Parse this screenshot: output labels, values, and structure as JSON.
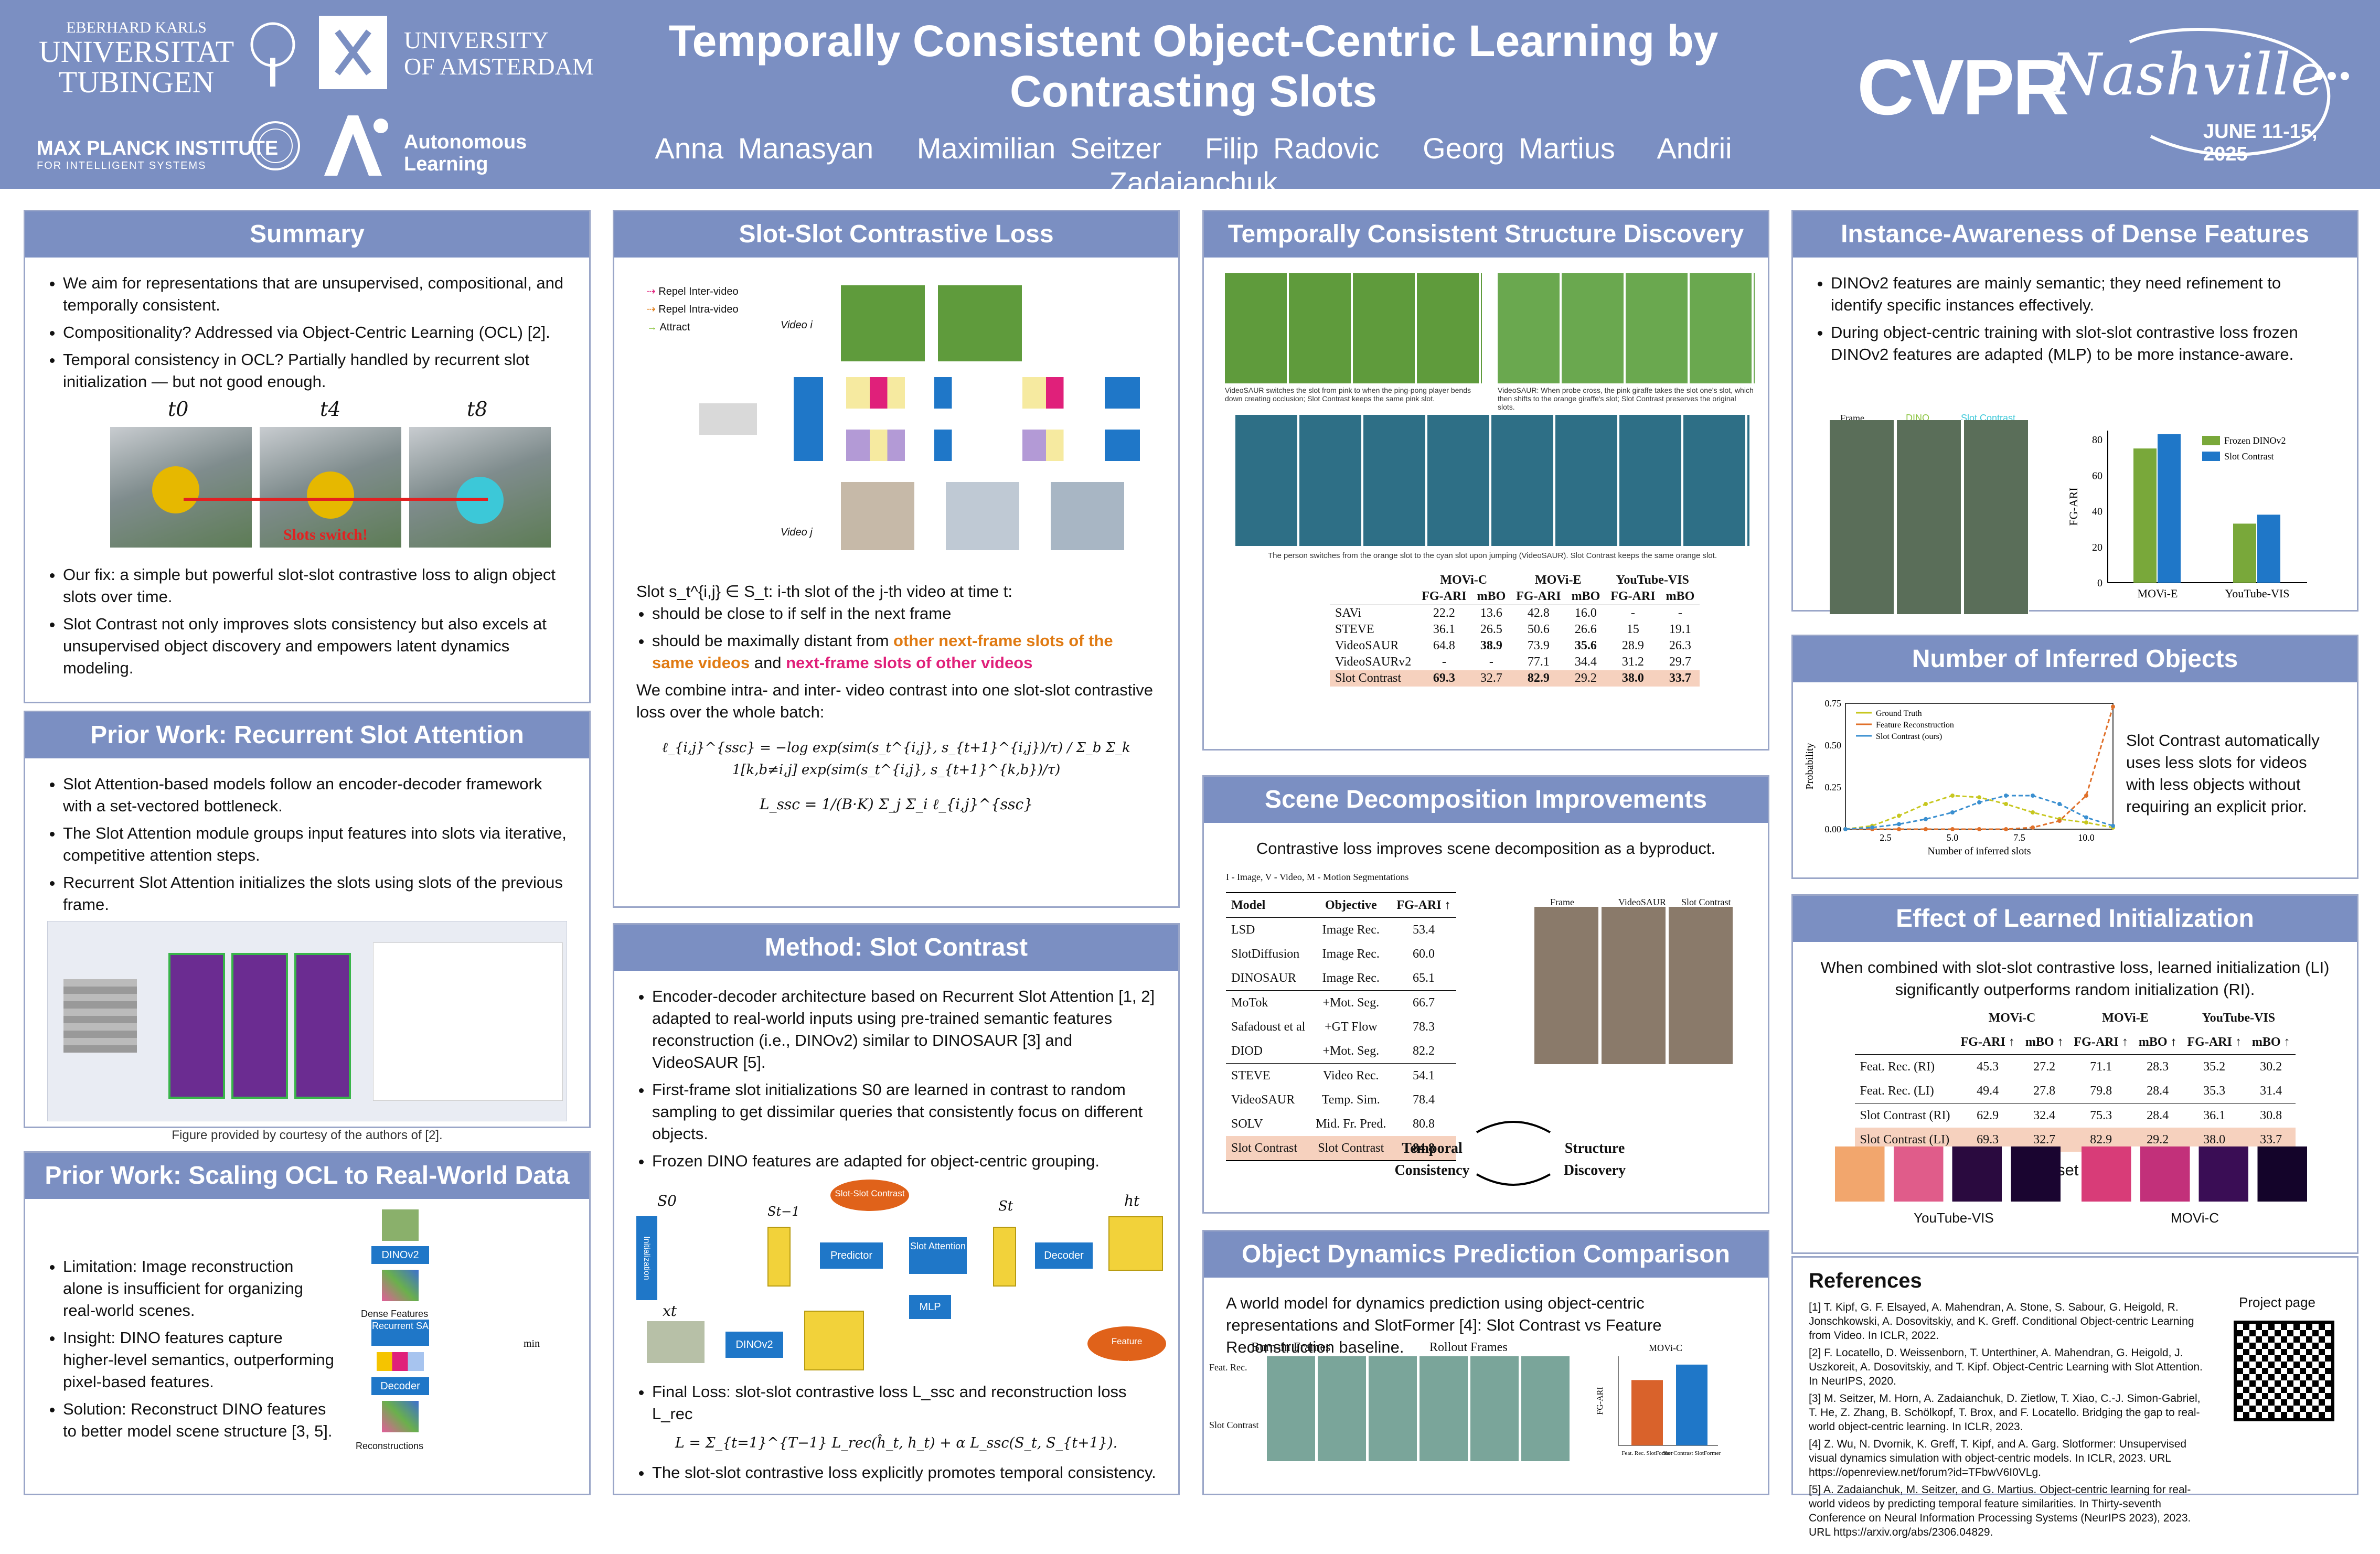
{
  "header": {
    "title": "Temporally Consistent Object-Centric Learning by Contrasting Slots",
    "authors": [
      "Anna Manasyan",
      "Maximilian Seitzer",
      "Filip Radovic",
      "Georg Martius",
      "Andrii Zadaianchuk"
    ],
    "logos": {
      "tuebingen_small": "EBERHARD KARLS",
      "tuebingen_big1": "UNIVERSITAT",
      "tuebingen_big2": "TUBINGEN",
      "amsterdam1": "UNIVERSITY",
      "amsterdam2": "OF AMSTERDAM",
      "mpi1": "MAX PLANCK INSTITUTE",
      "mpi2": "FOR INTELLIGENT SYSTEMS",
      "al1": "Autonomous",
      "al2": "Learning",
      "cvpr": "CVPR",
      "nashville": "Nashville",
      "dates": "JUNE 11-15, 2025"
    }
  },
  "summary": {
    "title": "Summary",
    "b1": "We aim for representations that are unsupervised, compositional, and temporally consistent.",
    "b2": "Compositionality? Addressed via Object-Centric Learning (OCL) [2].",
    "b3": "Temporal consistency in OCL? Partially handled by recurrent slot initialization — but not good enough.",
    "frames": [
      "t0",
      "t4",
      "t8"
    ],
    "switch_label": "Slots switch!",
    "b4": "Our fix: a simple but powerful slot-slot contrastive loss to align object slots over time.",
    "b5": "Slot Contrast not only improves slots consistency but also excels at unsupervised object discovery and empowers latent dynamics modeling."
  },
  "prior1": {
    "title": "Prior Work: Recurrent Slot Attention",
    "b1": "Slot Attention-based models follow an encoder-decoder framework with a set-vectored bottleneck.",
    "b2": "The Slot Attention module groups input features into slots via iterative, competitive attention steps.",
    "b3": "Recurrent Slot Attention initializes the slots using slots of the previous frame.",
    "caption": "Figure provided by courtesy of the authors of [2]."
  },
  "prior2": {
    "title": "Prior Work: Scaling OCL to Real-World Data",
    "b1": "Limitation: Image reconstruction alone is insufficient for organizing real-world scenes.",
    "b2": "Insight: DINO features capture higher-level semantics, outperforming pixel-based features.",
    "b3": "Solution: Reconstruct DINO features to better model scene structure [3, 5].",
    "fig_labels": [
      "DINOv2",
      "Dense Features",
      "Recurrent SA",
      "Decoder",
      "Reconstructions",
      "min"
    ]
  },
  "ssc": {
    "title": "Slot-Slot Contrastive Loss",
    "legend": [
      "Repel Inter-video",
      "Repel Intra-video",
      "Attract"
    ],
    "video_i": "Video i",
    "video_j": "Video j",
    "desc": "Slot s_t^{i,j} ∈ S_t: i-th slot of the j-th video at time t:",
    "b1": "should be close to if self in the next frame",
    "b2a": "should be maximally distant from",
    "b2b": "other next-frame slots of the same videos",
    "b2c": "and",
    "b2d": "next-frame slots of other videos",
    "combine": "We combine intra- and inter- video contrast into one slot-slot contrastive loss over the whole batch:",
    "eq1": "ℓ_{i,j}^{ssc} = −log exp(sim(s_t^{i,j}, s_{t+1}^{i,j})/τ) / Σ_b Σ_k 1[k,b≠i,j] exp(sim(s_t^{i,j}, s_{t+1}^{k,b})/τ)",
    "eq2": "L_ssc = 1/(B·K) Σ_j Σ_i ℓ_{i,j}^{ssc}"
  },
  "method": {
    "title": "Method: Slot Contrast",
    "b1": "Encoder-decoder architecture based on Recurrent Slot Attention [1, 2] adapted to real-world inputs using pre-trained semantic features reconstruction (i.e., DINOv2) similar to DINOSAUR [3] and VideoSAUR [5].",
    "b2": "First-frame slot initializations S0 are learned in contrast to random sampling to get dissimilar queries that consistently focus on different objects.",
    "b3": "Frozen DINO features are adapted for object-centric grouping.",
    "diagram": [
      "Initialization",
      "Predictor",
      "Slot Attention",
      "Decoder",
      "Slot-Slot Contrast",
      "MLP",
      "DINOv2",
      "Feature Reconstruction",
      "S0",
      "St−1",
      "St",
      "xt",
      "ht"
    ],
    "b4": "Final Loss: slot-slot contrastive loss L_ssc and reconstruction loss L_rec",
    "eq": "L = Σ_{t=1}^{T−1} L_rec(ĥ_t, h_t) + α L_ssc(S_t, S_{t+1}).",
    "b5": "The slot-slot contrastive loss explicitly promotes temporal consistency."
  },
  "tcsd": {
    "title": "Temporally Consistent Structure Discovery",
    "cap1": "VideoSAUR switches the slot from pink to when the ping-pong player bends down creating occlusion; Slot Contrast keeps the same pink slot.",
    "cap2": "VideoSAUR: When probe cross, the pink giraffe takes the slot one's slot, which then shifts to the orange giraffe's slot; Slot Contrast preserves the original slots.",
    "cap3": "The person switches from the orange slot to the cyan slot upon jumping (VideoSAUR). Slot Contrast keeps the same orange slot.",
    "table": {
      "groups": [
        "MOVi-C",
        "MOVi-E",
        "YouTube-VIS"
      ],
      "cols": [
        "FG-ARI",
        "mBO",
        "FG-ARI",
        "mBO",
        "FG-ARI",
        "mBO"
      ],
      "rows": [
        [
          "SAVi",
          "22.2",
          "13.6",
          "42.8",
          "16.0",
          "-",
          "-"
        ],
        [
          "STEVE",
          "36.1",
          "26.5",
          "50.6",
          "26.6",
          "15",
          "19.1"
        ],
        [
          "VideoSAUR",
          "64.8",
          "38.9",
          "73.9",
          "35.6",
          "28.9",
          "26.3"
        ],
        [
          "VideoSAURv2",
          "-",
          "-",
          "77.1",
          "34.4",
          "31.2",
          "29.7"
        ],
        [
          "Slot Contrast",
          "69.3",
          "32.7",
          "82.9",
          "29.2",
          "38.0",
          "33.7"
        ]
      ]
    }
  },
  "scene": {
    "title": "Scene Decomposition Improvements",
    "intro": "Contrastive loss improves scene decomposition as a byproduct.",
    "legend": "I - Image, V - Video, M - Motion Segmentations",
    "headers": [
      "Model",
      "Objective",
      "FG-ARI ↑"
    ],
    "rows": [
      [
        "LSD",
        "Image Rec.",
        "53.4"
      ],
      [
        "SlotDiffusion",
        "Image Rec.",
        "60.0"
      ],
      [
        "DINOSAUR",
        "Image Rec.",
        "65.1"
      ],
      [
        "MoTok",
        "+Mot. Seg.",
        "66.7"
      ],
      [
        "Safadoust et al",
        "+GT Flow",
        "78.3"
      ],
      [
        "DIOD",
        "+Mot. Seg.",
        "82.2"
      ],
      [
        "STEVE",
        "Video Rec.",
        "54.1"
      ],
      [
        "VideoSAUR",
        "Temp. Sim.",
        "78.4"
      ],
      [
        "SOLV",
        "Mid. Fr. Pred.",
        "80.8"
      ],
      [
        "Slot Contrast",
        "Slot Contrast",
        "84.8"
      ]
    ],
    "col_labels": [
      "Frame",
      "VideoSAUR",
      "Slot Contrast"
    ],
    "cycle": [
      "Temporal Consistency",
      "Structure Discovery"
    ]
  },
  "dynamics": {
    "title": "Object Dynamics Prediction Comparison",
    "intro": "A world model for dynamics prediction using object-centric representations and SlotFormer [4]: Slot Contrast vs Feature Reconstruction baseline.",
    "burn": "Burn-in Frames",
    "rollout": "Rollout Frames",
    "row_labels": [
      "Feat. Rec.",
      "Slot Contrast"
    ],
    "chart_title": "MOVi-C",
    "ylabel": "FG-ARI",
    "bars": [
      "Feat. Rec. SlotFormer",
      "Slot Contrast SlotFormer"
    ]
  },
  "instance": {
    "title": "Instance-Awareness of Dense Features",
    "b1": "DINOv2 features are mainly semantic; they need refinement to identify specific instances effectively.",
    "b2": "During object-centric training with slot-slot contrastive loss frozen DINOv2 features are adapted (MLP) to be more instance-aware.",
    "col_labels": [
      "Frame",
      "DINO",
      "Slot Contrast"
    ]
  },
  "inferred": {
    "title": "Number of Inferred Objects",
    "text": "Slot Contrast automatically uses less slots for videos with less objects without requiring an explicit prior."
  },
  "init": {
    "title": "Effect of Learned Initialization",
    "intro": "When combined with slot-slot contrastive loss, learned initialization (LI) significantly outperforms random initialization (RI).",
    "groups": [
      "MOVi-C",
      "MOVi-E",
      "YouTube-VIS"
    ],
    "cols": [
      "FG-ARI ↑",
      "mBO ↑",
      "FG-ARI ↑",
      "mBO ↑",
      "FG-ARI ↑",
      "mBO ↑"
    ],
    "rows": [
      [
        "Feat. Rec. (RI)",
        "45.3",
        "27.2",
        "71.1",
        "28.3",
        "35.2",
        "30.2"
      ],
      [
        "Feat. Rec. (LI)",
        "49.4",
        "27.8",
        "79.8",
        "28.4",
        "35.3",
        "31.4"
      ],
      [
        "Slot Contrast (RI)",
        "62.9",
        "32.4",
        "75.3",
        "28.4",
        "36.1",
        "30.8"
      ],
      [
        "Slot Contrast (LI)",
        "69.3",
        "32.7",
        "82.9",
        "29.2",
        "38.0",
        "33.7"
      ]
    ],
    "sim_title": "Similarity between the set of slot initializations, S0.",
    "heat_labels": [
      "YouTube-VIS",
      "MOVi-C"
    ]
  },
  "refs": {
    "title": "References",
    "project": "Project page",
    "items": [
      "[1] T. Kipf, G. F. Elsayed, A. Mahendran, A. Stone, S. Sabour, G. Heigold, R. Jonschkowski, A. Dosovitskiy, and K. Greff. Conditional Object-centric Learning from Video. In ICLR, 2022.",
      "[2] F. Locatello, D. Weissenborn, T. Unterthiner, A. Mahendran, G. Heigold, J. Uszkoreit, A. Dosovitskiy, and T. Kipf. Object-Centric Learning with Slot Attention. In NeurIPS, 2020.",
      "[3] M. Seitzer, M. Horn, A. Zadaianchuk, D. Zietlow, T. Xiao, C.-J. Simon-Gabriel, T. He, Z. Zhang, B. Schölkopf, T. Brox, and F. Locatello. Bridging the gap to real-world object-centric learning. In ICLR, 2023.",
      "[4] Z. Wu, N. Dvornik, K. Greff, T. Kipf, and A. Garg. Slotformer: Unsupervised visual dynamics simulation with object-centric models. In ICLR, 2023. URL https://openreview.net/forum?id=TFbwV6I0VLg.",
      "[5] A. Zadaianchuk, M. Seitzer, and G. Martius. Object-centric learning for real-world videos by predicting temporal feature similarities. In Thirty-seventh Conference on Neural Information Processing Systems (NeurIPS 2023), 2023. URL https://arxiv.org/abs/2306.04829."
    ]
  },
  "chart_data": [
    {
      "type": "bar",
      "title": "",
      "categories": [
        "MOVi-E",
        "YouTube-VIS"
      ],
      "series": [
        {
          "name": "Frozen DINOv2",
          "values": [
            75,
            33
          ]
        },
        {
          "name": "Slot Contrast",
          "values": [
            83,
            38
          ]
        }
      ],
      "ylabel": "FG-ARI",
      "ylim": [
        0,
        85
      ],
      "yticks": [
        0,
        20,
        40,
        60,
        80
      ],
      "colors": [
        "#79a83a",
        "#1f77c8"
      ],
      "legend": "top-right"
    },
    {
      "type": "line",
      "title": "",
      "xlabel": "Number of inferred slots",
      "ylabel": "Probability",
      "x": [
        1,
        2,
        3,
        4,
        5,
        6,
        7,
        8,
        9,
        10,
        11
      ],
      "series": [
        {
          "name": "Ground Truth",
          "values": [
            0.0,
            0.02,
            0.08,
            0.15,
            0.2,
            0.19,
            0.15,
            0.1,
            0.06,
            0.04,
            0.01
          ]
        },
        {
          "name": "Feature Reconstruction",
          "values": [
            0.0,
            0.0,
            0.0,
            0.0,
            0.0,
            0.0,
            0.0,
            0.01,
            0.05,
            0.2,
            0.73
          ]
        },
        {
          "name": "Slot Contrast (ours)",
          "values": [
            0.0,
            0.01,
            0.03,
            0.06,
            0.1,
            0.16,
            0.2,
            0.2,
            0.15,
            0.07,
            0.02
          ]
        }
      ],
      "ylim": [
        0,
        0.75
      ],
      "yticks": [
        0.0,
        0.25,
        0.5,
        0.75
      ],
      "xticks": [
        2.5,
        5.0,
        7.5,
        10.0
      ],
      "colors": [
        "#c7c71f",
        "#e0702a",
        "#3a8fd0"
      ],
      "legend": "top-left"
    },
    {
      "type": "bar",
      "title": "MOVi-C",
      "categories": [
        "Feat. Rec. SlotFormer",
        "Slot Contrast SlotFormer"
      ],
      "values": [
        55,
        68
      ],
      "ylabel": "FG-ARI",
      "ylim": [
        0,
        75
      ],
      "colors": [
        "#d9622b",
        "#1f77c8"
      ]
    }
  ]
}
